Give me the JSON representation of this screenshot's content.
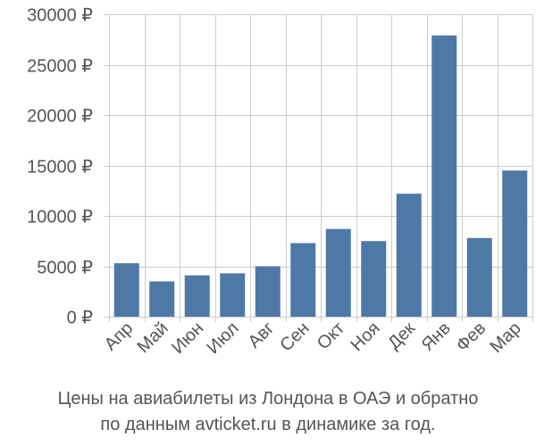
{
  "caption": {
    "line1": "Цены на авиабилеты из Лондона в ОАЭ и обратно",
    "line2": "по данным avticket.ru в динамике за год."
  },
  "chart_data": {
    "type": "bar",
    "categories": [
      "Апр",
      "Май",
      "Июн",
      "Июл",
      "Авг",
      "Сен",
      "Окт",
      "Ноя",
      "Дек",
      "Янв",
      "Фев",
      "Мар"
    ],
    "values": [
      5300,
      3500,
      4100,
      4300,
      5000,
      7300,
      8700,
      7500,
      12200,
      27900,
      7800,
      14500
    ],
    "ylim": [
      0,
      30000
    ],
    "yticks": [
      0,
      5000,
      10000,
      15000,
      20000,
      25000,
      30000
    ],
    "ytick_labels": [
      "0 ₽",
      "5000 ₽",
      "10000 ₽",
      "15000 ₽",
      "20000 ₽",
      "25000 ₽",
      "30000 ₽"
    ],
    "grid": true,
    "bar_color": "#4e79a7",
    "grid_color": "#cccccc"
  }
}
